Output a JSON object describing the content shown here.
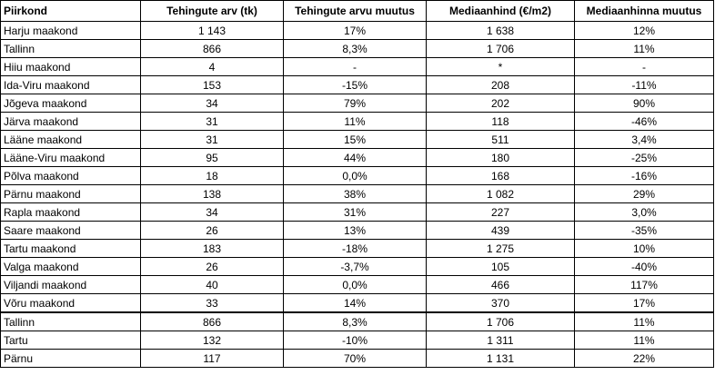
{
  "table": {
    "headers": [
      "Piirkond",
      "Tehingute arv (tk)",
      "Tehingute arvu muutus",
      "Mediaanhind (€/m2)",
      "Mediaanhinna muutus"
    ],
    "rows": [
      [
        "Harju maakond",
        "1 143",
        "17%",
        "1 638",
        "12%"
      ],
      [
        "Tallinn",
        "866",
        "8,3%",
        "1 706",
        "11%"
      ],
      [
        "Hiiu maakond",
        "4",
        "-",
        "*",
        "-"
      ],
      [
        "Ida-Viru maakond",
        "153",
        "-15%",
        "208",
        "-11%"
      ],
      [
        "Jõgeva maakond",
        "34",
        "79%",
        "202",
        "90%"
      ],
      [
        "Järva maakond",
        "31",
        "11%",
        "118",
        "-46%"
      ],
      [
        "Lääne maakond",
        "31",
        "15%",
        "511",
        "3,4%"
      ],
      [
        "Lääne-Viru maakond",
        "95",
        "44%",
        "180",
        "-25%"
      ],
      [
        "Põlva maakond",
        "18",
        "0,0%",
        "168",
        "-16%"
      ],
      [
        "Pärnu maakond",
        "138",
        "38%",
        "1 082",
        "29%"
      ],
      [
        "Rapla maakond",
        "34",
        "31%",
        "227",
        "3,0%"
      ],
      [
        "Saare maakond",
        "26",
        "13%",
        "439",
        "-35%"
      ],
      [
        "Tartu maakond",
        "183",
        "-18%",
        "1 275",
        "10%"
      ],
      [
        "Valga maakond",
        "26",
        "-3,7%",
        "105",
        "-40%"
      ],
      [
        "Viljandi maakond",
        "40",
        "0,0%",
        "466",
        "117%"
      ],
      [
        "Võru maakond",
        "33",
        "14%",
        "370",
        "17%"
      ]
    ],
    "city_rows": [
      [
        "Tallinn",
        "866",
        "8,3%",
        "1 706",
        "11%"
      ],
      [
        "Tartu",
        "132",
        "-10%",
        "1 311",
        "11%"
      ],
      [
        "Pärnu",
        "117",
        "70%",
        "1 131",
        "22%"
      ]
    ]
  }
}
